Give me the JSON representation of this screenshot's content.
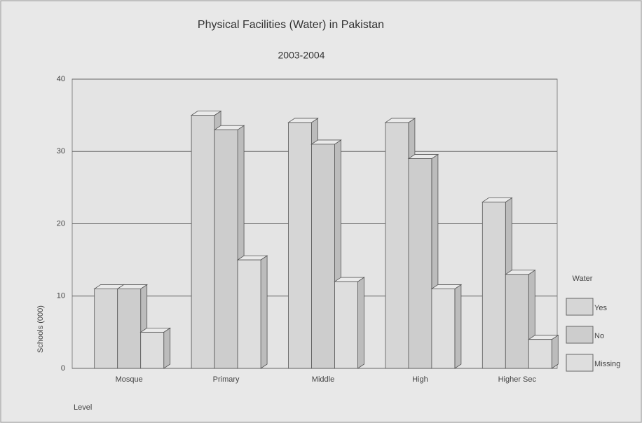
{
  "chart_data": {
    "type": "bar",
    "title": "Physical Facilities (Water) in Pakistan",
    "subtitle": "2003-2004",
    "x_label": "Level",
    "y_label": "Schools (000)",
    "categories": [
      "Mosque",
      "Primary",
      "Middle",
      "High",
      "Higher Sec"
    ],
    "series": [
      {
        "name": "Yes",
        "color": "#d6d6d6",
        "values": [
          11,
          35,
          34,
          34,
          23
        ]
      },
      {
        "name": "No",
        "color": "#cdcdcd",
        "values": [
          11,
          33,
          31,
          29,
          13
        ]
      },
      {
        "name": "Missing",
        "color": "#dedede",
        "values": [
          5,
          15,
          12,
          11,
          4
        ]
      }
    ],
    "legend_title": "Water",
    "legend": "right",
    "ylim": [
      0,
      40
    ],
    "yticks": [
      0,
      10,
      20,
      30,
      40
    ],
    "grid": true
  }
}
